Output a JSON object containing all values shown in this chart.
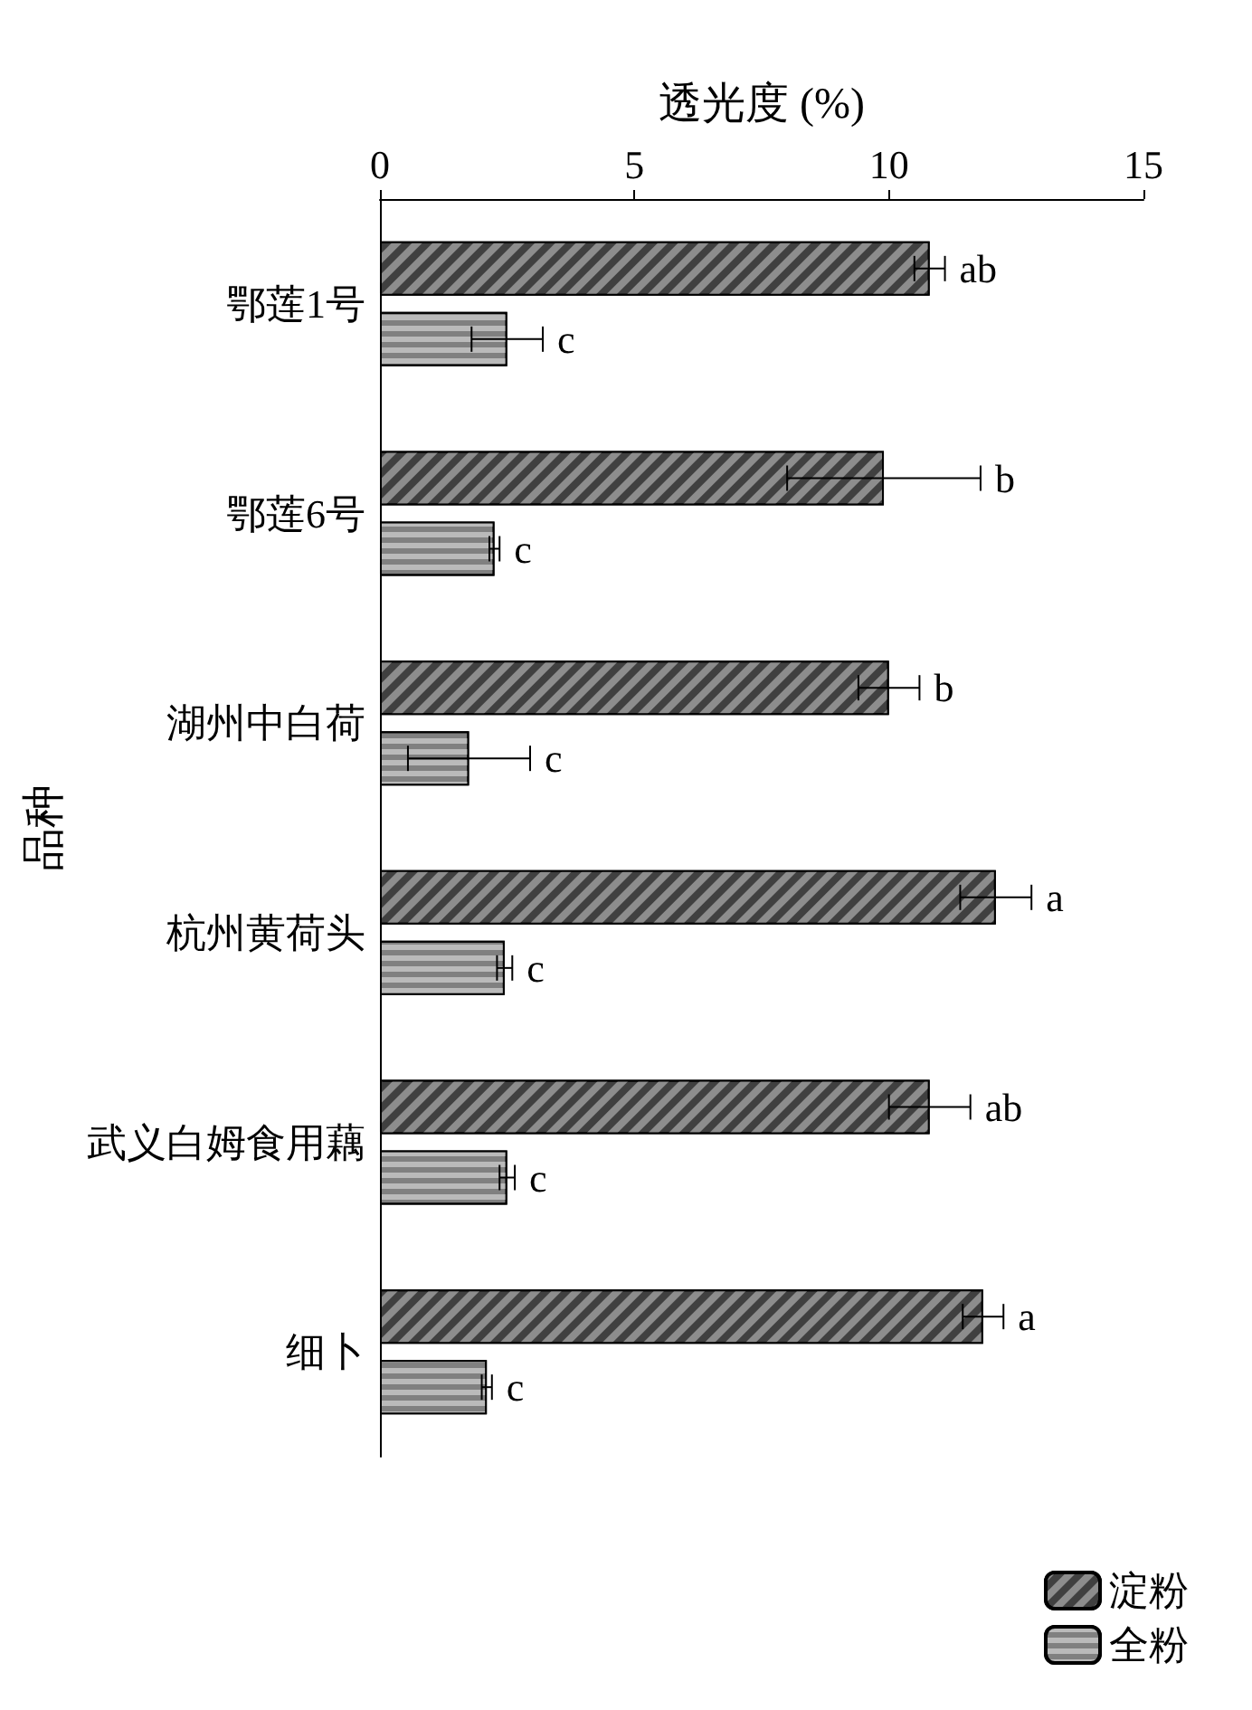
{
  "chart_data": {
    "type": "bar",
    "orientation": "horizontal",
    "xlabel": "透光度 (%)",
    "ylabel": "品种",
    "categories": [
      "鄂莲1号",
      "鄂莲6号",
      "湖州中白荷",
      "杭州黄荷头",
      "武义白姆食用藕",
      "细卜"
    ],
    "series": [
      {
        "name": "淀粉",
        "color": "#404040",
        "values": [
          10.8,
          9.9,
          10.0,
          12.1,
          10.8,
          11.85
        ],
        "errors": [
          0.3,
          1.9,
          0.6,
          0.7,
          0.8,
          0.4
        ]
      },
      {
        "name": "全粉",
        "color": "#808080",
        "values": [
          2.5,
          2.25,
          1.75,
          2.45,
          2.5,
          2.1
        ],
        "errors": [
          0.7,
          0.1,
          1.2,
          0.15,
          0.15,
          0.1
        ]
      }
    ],
    "annotations": [
      "ab",
      "c",
      "b",
      "c",
      "b",
      "c",
      "a",
      "c",
      "ab",
      "c",
      "a",
      "c"
    ],
    "xlim": [
      0,
      15
    ],
    "xticks": [
      0,
      5,
      10,
      15
    ],
    "grid": false,
    "legend": "bottom right"
  }
}
